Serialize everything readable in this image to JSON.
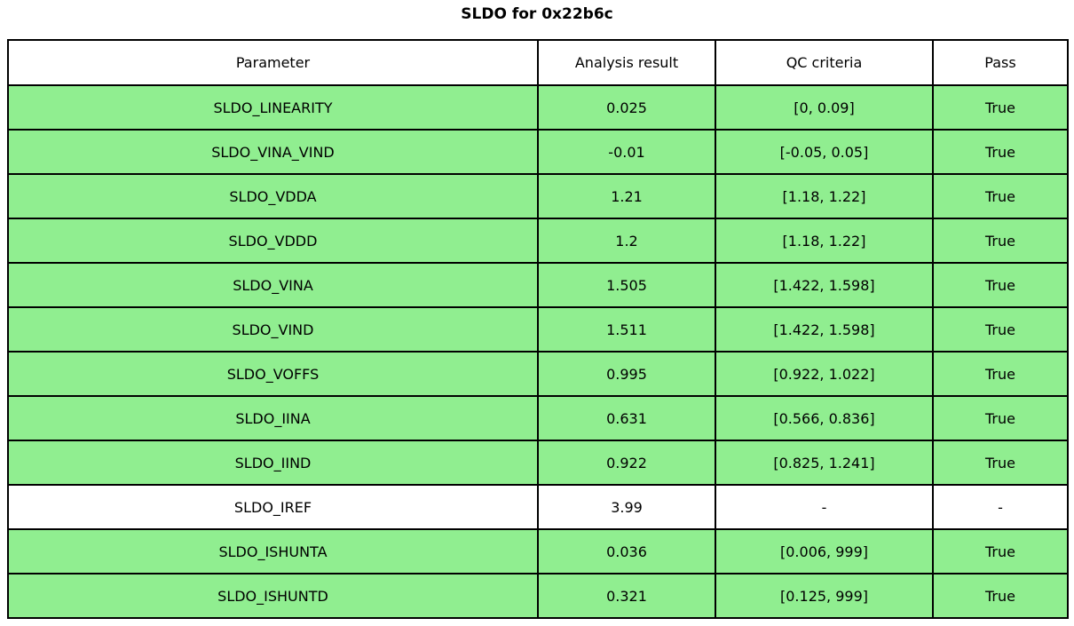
{
  "title": "SLDO for 0x22b6c",
  "colors": {
    "pass_row_bg": "#90ee90",
    "neutral_row_bg": "#ffffff",
    "border": "#000000",
    "text": "#000000"
  },
  "table": {
    "headers": [
      "Parameter",
      "Analysis result",
      "QC criteria",
      "Pass"
    ],
    "rows": [
      {
        "cells": [
          "SLDO_LINEARITY",
          "0.025",
          "[0, 0.09]",
          "True"
        ],
        "highlight": true
      },
      {
        "cells": [
          "SLDO_VINA_VIND",
          "-0.01",
          "[-0.05, 0.05]",
          "True"
        ],
        "highlight": true
      },
      {
        "cells": [
          "SLDO_VDDA",
          "1.21",
          "[1.18, 1.22]",
          "True"
        ],
        "highlight": true
      },
      {
        "cells": [
          "SLDO_VDDD",
          "1.2",
          "[1.18, 1.22]",
          "True"
        ],
        "highlight": true
      },
      {
        "cells": [
          "SLDO_VINA",
          "1.505",
          "[1.422, 1.598]",
          "True"
        ],
        "highlight": true
      },
      {
        "cells": [
          "SLDO_VIND",
          "1.511",
          "[1.422, 1.598]",
          "True"
        ],
        "highlight": true
      },
      {
        "cells": [
          "SLDO_VOFFS",
          "0.995",
          "[0.922, 1.022]",
          "True"
        ],
        "highlight": true
      },
      {
        "cells": [
          "SLDO_IINA",
          "0.631",
          "[0.566, 0.836]",
          "True"
        ],
        "highlight": true
      },
      {
        "cells": [
          "SLDO_IIND",
          "0.922",
          "[0.825, 1.241]",
          "True"
        ],
        "highlight": true
      },
      {
        "cells": [
          "SLDO_IREF",
          "3.99",
          "-",
          "-"
        ],
        "highlight": false
      },
      {
        "cells": [
          "SLDO_ISHUNTA",
          "0.036",
          "[0.006, 999]",
          "True"
        ],
        "highlight": true
      },
      {
        "cells": [
          "SLDO_ISHUNTD",
          "0.321",
          "[0.125, 999]",
          "True"
        ],
        "highlight": true
      }
    ]
  }
}
